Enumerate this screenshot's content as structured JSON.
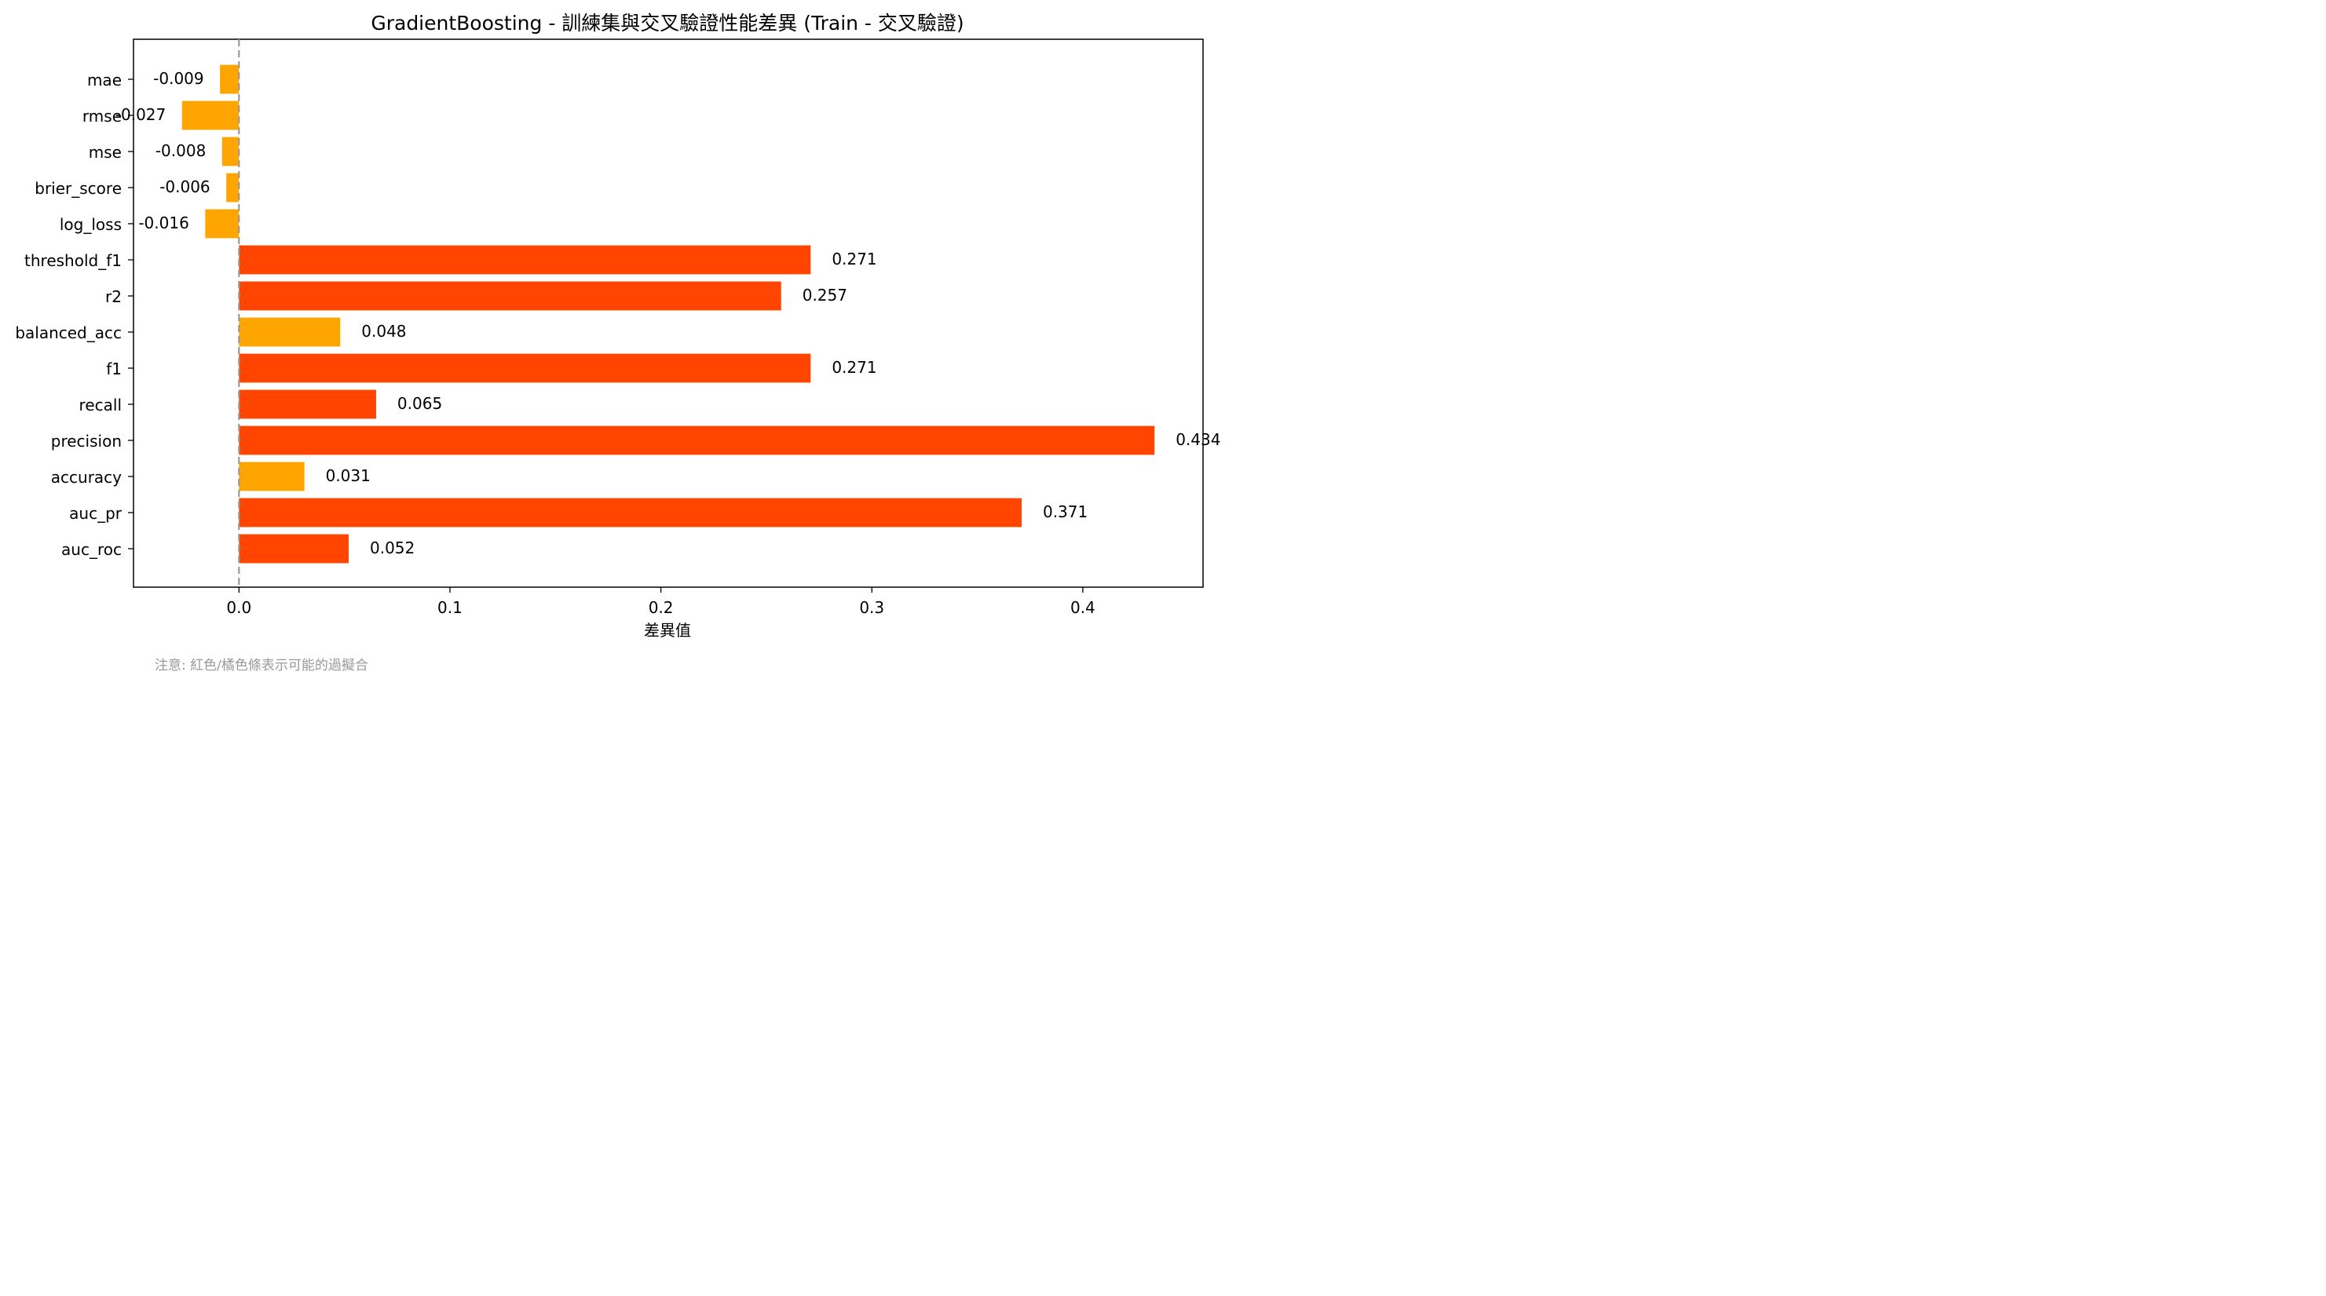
{
  "chart_data": {
    "type": "bar",
    "orientation": "horizontal",
    "title": "GradientBoosting - 訓練集與交叉驗證性能差異 (Train - 交叉驗證)",
    "xlabel": "差異值",
    "ylabel": "",
    "xlim": [
      -0.05,
      0.457
    ],
    "x_ticks": [
      "0.0",
      "0.1",
      "0.2",
      "0.3",
      "0.4"
    ],
    "x_tick_values": [
      0,
      0.1,
      0.2,
      0.3,
      0.4
    ],
    "reference_line": 0,
    "grid": false,
    "colors": {
      "large_diff": "#ff4500",
      "small_diff": "#ffa500",
      "reference_line": "#999999"
    },
    "bars": [
      {
        "label": "auc_roc",
        "value": 0.052,
        "value_text": "0.052",
        "color": "#ff4500"
      },
      {
        "label": "auc_pr",
        "value": 0.371,
        "value_text": "0.371",
        "color": "#ff4500"
      },
      {
        "label": "accuracy",
        "value": 0.031,
        "value_text": "0.031",
        "color": "#ffa500"
      },
      {
        "label": "precision",
        "value": 0.434,
        "value_text": "0.434",
        "color": "#ff4500"
      },
      {
        "label": "recall",
        "value": 0.065,
        "value_text": "0.065",
        "color": "#ff4500"
      },
      {
        "label": "f1",
        "value": 0.271,
        "value_text": "0.271",
        "color": "#ff4500"
      },
      {
        "label": "balanced_acc",
        "value": 0.048,
        "value_text": "0.048",
        "color": "#ffa500"
      },
      {
        "label": "r2",
        "value": 0.257,
        "value_text": "0.257",
        "color": "#ff4500"
      },
      {
        "label": "threshold_f1",
        "value": 0.271,
        "value_text": "0.271",
        "color": "#ff4500"
      },
      {
        "label": "log_loss",
        "value": -0.016,
        "value_text": "-0.016",
        "color": "#ffa500"
      },
      {
        "label": "brier_score",
        "value": -0.006,
        "value_text": "-0.006",
        "color": "#ffa500"
      },
      {
        "label": "mse",
        "value": -0.008,
        "value_text": "-0.008",
        "color": "#ffa500"
      },
      {
        "label": "rmse",
        "value": -0.027,
        "value_text": "-0.027",
        "color": "#ffa500"
      },
      {
        "label": "mae",
        "value": -0.009,
        "value_text": "-0.009",
        "color": "#ffa500"
      }
    ],
    "note": "注意: 紅色/橘色條表示可能的過擬合"
  }
}
